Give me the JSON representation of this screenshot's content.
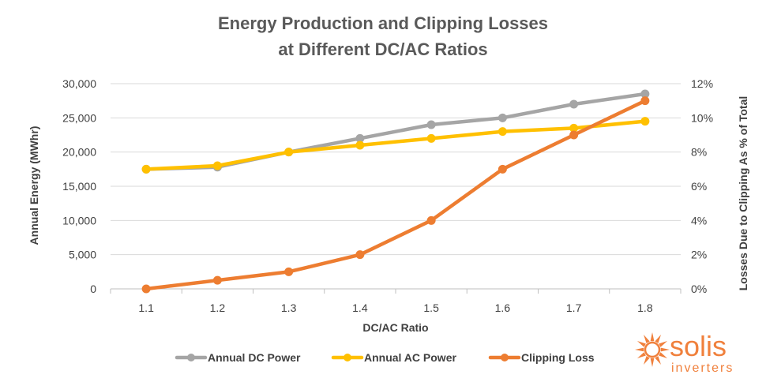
{
  "chart_data": {
    "type": "line",
    "title_lines": [
      "Energy Production and Clipping Losses",
      "at Different DC/AC Ratios"
    ],
    "xlabel": "DC/AC Ratio",
    "ylabel": "Annual Energy (MWhr)",
    "y2label": "Losses Due to Clipping As % of Total",
    "categories": [
      "1.1",
      "1.2",
      "1.3",
      "1.4",
      "1.5",
      "1.6",
      "1.7",
      "1.8"
    ],
    "ylim": [
      0,
      30000
    ],
    "y_ticks": [
      "0",
      "5,000",
      "10,000",
      "15,000",
      "20,000",
      "25,000",
      "30,000"
    ],
    "y2lim": [
      0,
      12
    ],
    "y2_ticks": [
      "0%",
      "2%",
      "4%",
      "6%",
      "8%",
      "10%",
      "12%"
    ],
    "grid": true,
    "legend_position": "bottom",
    "series": [
      {
        "name": "Annual DC Power",
        "axis": "left",
        "color": "#a5a5a5",
        "values": [
          17500,
          17800,
          20000,
          22000,
          24000,
          25000,
          27000,
          28500
        ]
      },
      {
        "name": "Annual AC Power",
        "axis": "left",
        "color": "#ffc000",
        "values": [
          17500,
          18000,
          20000,
          21000,
          22000,
          23000,
          23500,
          24500
        ]
      },
      {
        "name": "Clipping Loss",
        "axis": "right",
        "color": "#ed7d31",
        "values": [
          0,
          0.5,
          1.0,
          2.0,
          4.0,
          7.0,
          9.0,
          11.0
        ]
      }
    ]
  },
  "logo": {
    "name": "solis",
    "sub": "inverters",
    "color": "#f0803c",
    "icon": "sun-icon"
  }
}
